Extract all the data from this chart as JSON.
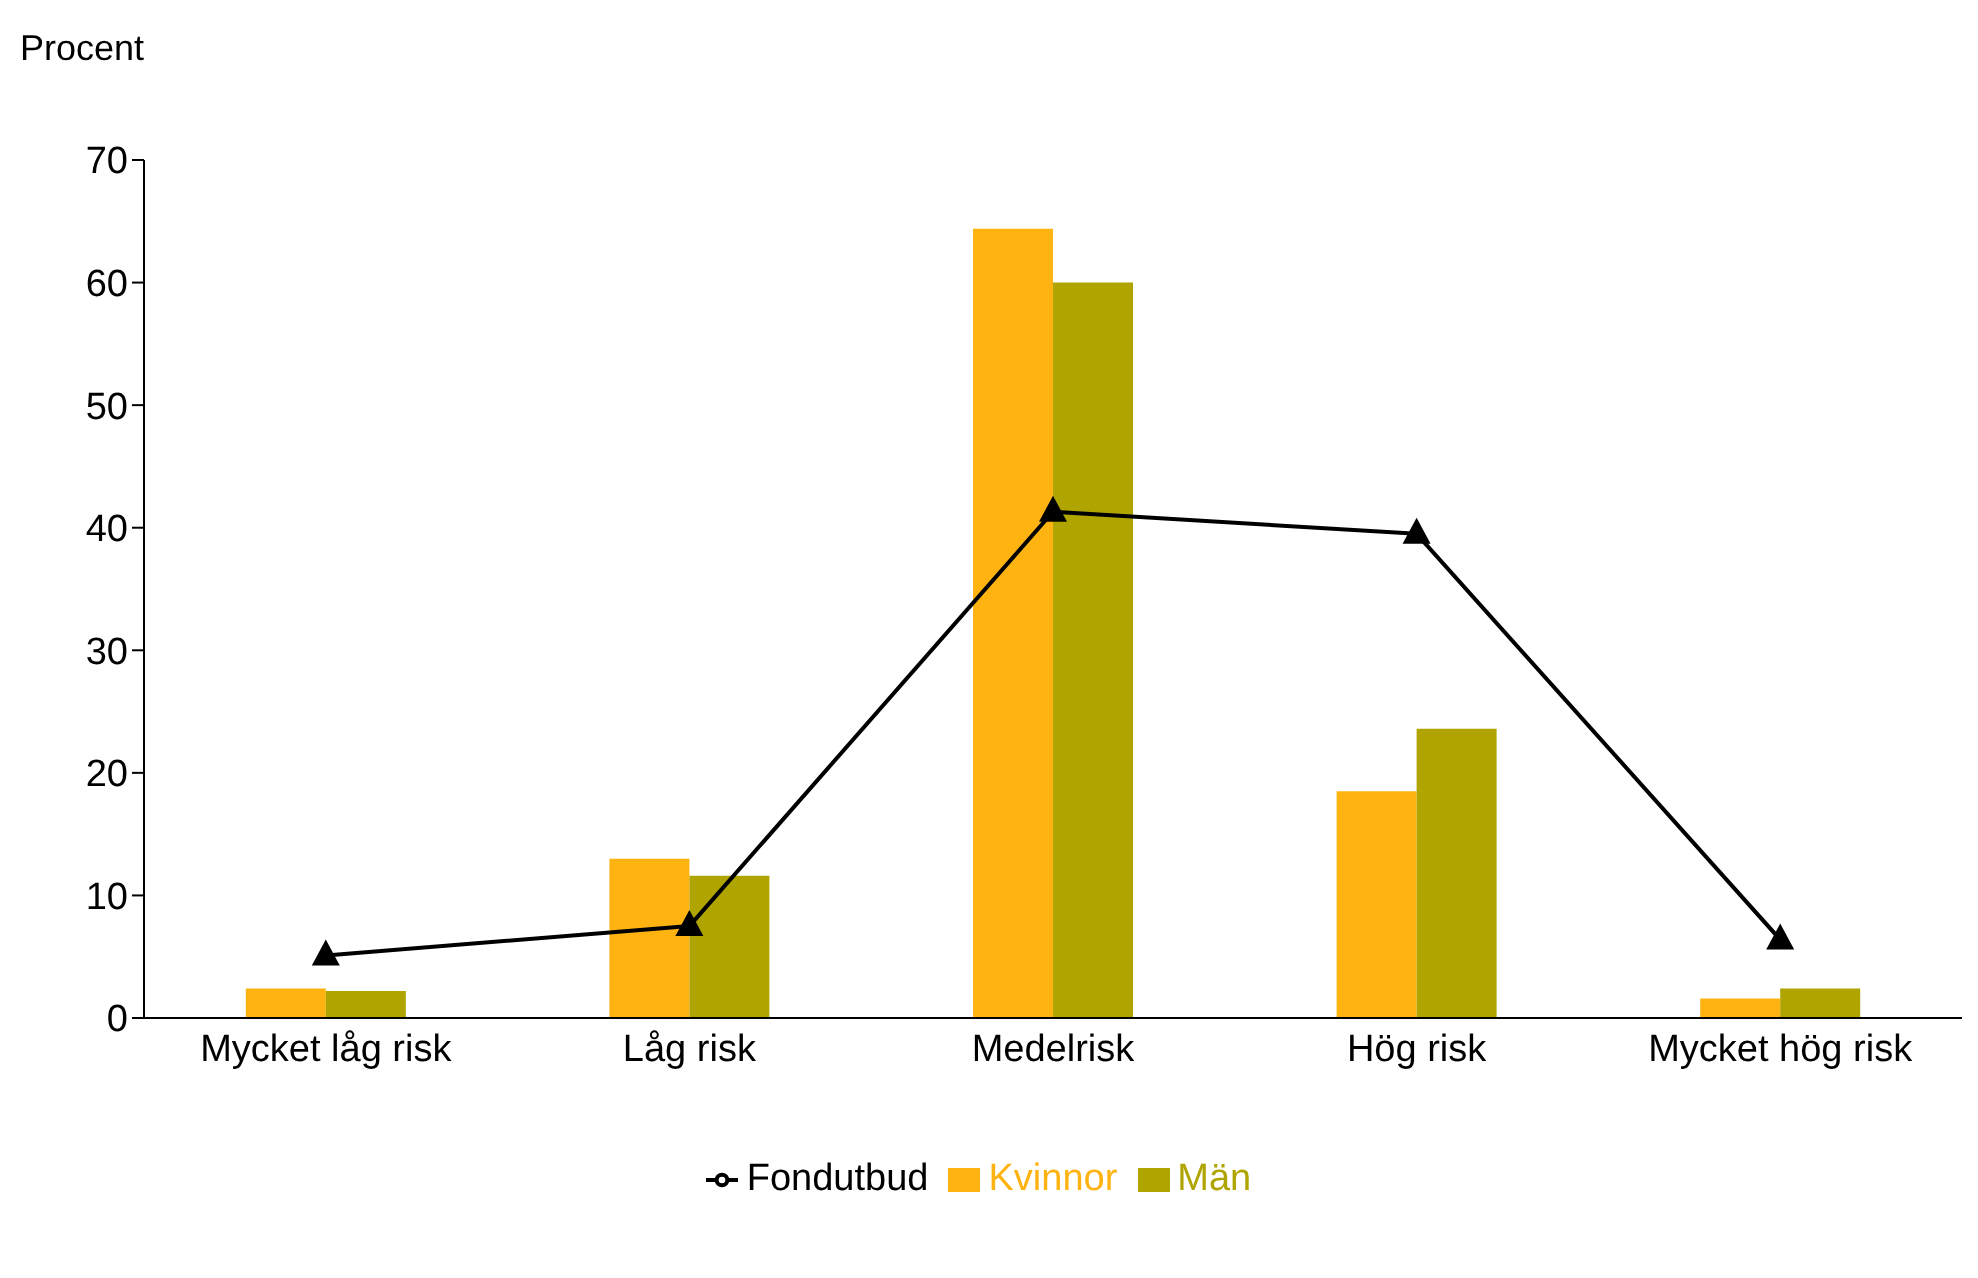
{
  "chart_data": {
    "type": "bar",
    "ylabel": "Procent",
    "categories": [
      "Mycket låg risk",
      "Låg risk",
      "Medelrisk",
      "Hög risk",
      "Mycket hög risk"
    ],
    "series": [
      {
        "name": "Kvinnor",
        "color": "#ffb311",
        "values": [
          2.4,
          13.0,
          64.4,
          18.5,
          1.6
        ]
      },
      {
        "name": "Män",
        "color": "#b0a500",
        "values": [
          2.2,
          11.6,
          60.0,
          23.6,
          2.4
        ]
      },
      {
        "name": "Fondutbud",
        "type": "line",
        "color": "#000000",
        "marker": "triangle",
        "values": [
          5.1,
          7.5,
          41.3,
          39.5,
          6.4
        ]
      }
    ],
    "ylim": [
      0,
      70
    ],
    "yticks": [
      0,
      10,
      20,
      30,
      40,
      50,
      60,
      70
    ],
    "grid": false,
    "legend": "bottom"
  }
}
